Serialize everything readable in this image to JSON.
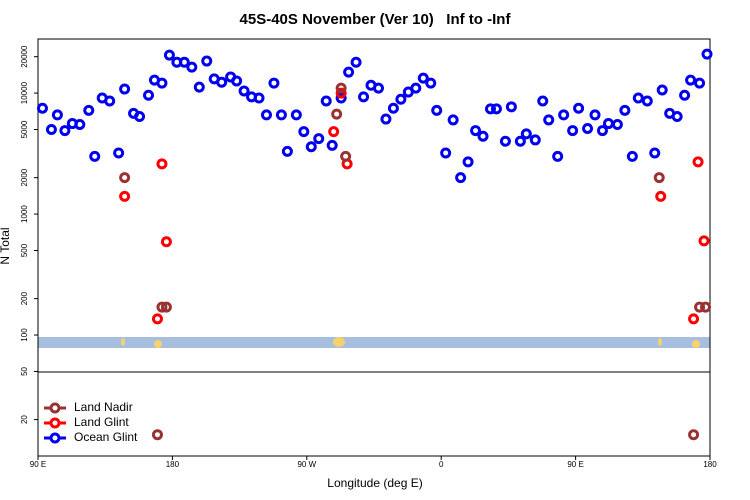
{
  "chart_data": {
    "type": "scatter",
    "title": "45S-40S November (Ver 10)   Inf to -Inf",
    "x_label": "Longitude (deg E)",
    "y_label": "N Total",
    "log_y": true,
    "xlim": [
      90,
      540
    ],
    "xticks": [
      {
        "value": 90,
        "label": "90 E"
      },
      180,
      {
        "value": 270,
        "label": "90 W"
      },
      {
        "value": 360,
        "label": "0"
      },
      {
        "value": 450,
        "label": "90 E"
      },
      {
        "value": 540,
        "label": "180"
      }
    ],
    "ylim": [
      10,
      28000
    ],
    "yticks": [
      20,
      50,
      100,
      200,
      500,
      1000,
      2000,
      5000,
      10000,
      20000
    ],
    "legend": "bottom-left",
    "series": [
      {
        "name": "Land Nadir",
        "color": "#993333",
        "x": [
          148,
          173,
          176,
          170,
          290,
          293,
          296,
          506,
          533,
          537,
          529
        ],
        "values": [
          2000,
          170,
          170,
          15,
          6700,
          11000,
          3000,
          2000,
          170,
          170,
          15
        ]
      },
      {
        "name": "Land Glint",
        "color": "#ff0000",
        "x": [
          148,
          173,
          176,
          170,
          288,
          293,
          297,
          507,
          532,
          536,
          529
        ],
        "values": [
          1400,
          2600,
          590,
          136,
          4800,
          10000,
          2600,
          1400,
          2700,
          600,
          136
        ]
      },
      {
        "name": "Ocean Glint",
        "color": "#0000ee",
        "x": [
          93,
          99,
          103,
          108,
          113,
          118,
          124,
          128,
          133,
          138,
          144,
          148,
          154,
          158,
          164,
          168,
          173,
          178,
          183,
          188,
          193,
          198,
          203,
          208,
          213,
          219,
          223,
          228,
          233,
          238,
          243,
          248,
          253,
          257,
          263,
          268,
          273,
          278,
          283,
          287,
          293,
          298,
          303,
          308,
          313,
          318,
          323,
          328,
          333,
          338,
          343,
          348,
          353,
          357,
          363,
          368,
          373,
          378,
          383,
          388,
          393,
          397,
          403,
          407,
          413,
          417,
          423,
          428,
          432,
          438,
          442,
          448,
          452,
          458,
          463,
          468,
          472,
          478,
          483,
          488,
          492,
          498,
          503,
          508,
          513,
          518,
          523,
          527,
          533,
          538
        ],
        "values": [
          7500,
          5000,
          6600,
          4900,
          5600,
          5500,
          7200,
          3000,
          9100,
          8600,
          3200,
          10800,
          6800,
          6400,
          9600,
          12800,
          12100,
          20600,
          18000,
          18000,
          16400,
          11200,
          18400,
          13100,
          12300,
          13600,
          12600,
          10400,
          9300,
          9100,
          6600,
          12100,
          6600,
          3300,
          6600,
          4800,
          3600,
          4200,
          8600,
          3700,
          9100,
          14900,
          18000,
          9300,
          11600,
          11000,
          6100,
          7500,
          8900,
          10200,
          11000,
          13300,
          12100,
          7200,
          3200,
          6000,
          2000,
          2700,
          4900,
          4400,
          7400,
          7400,
          4000,
          7700,
          4000,
          4600,
          4100,
          8600,
          6000,
          3000,
          6600,
          4900,
          7500,
          5100,
          6600,
          4900,
          5600,
          5500,
          7200,
          3000,
          9100,
          8600,
          3200,
          10600,
          6800,
          6400,
          9600,
          12800,
          12100,
          21000
        ]
      }
    ]
  }
}
